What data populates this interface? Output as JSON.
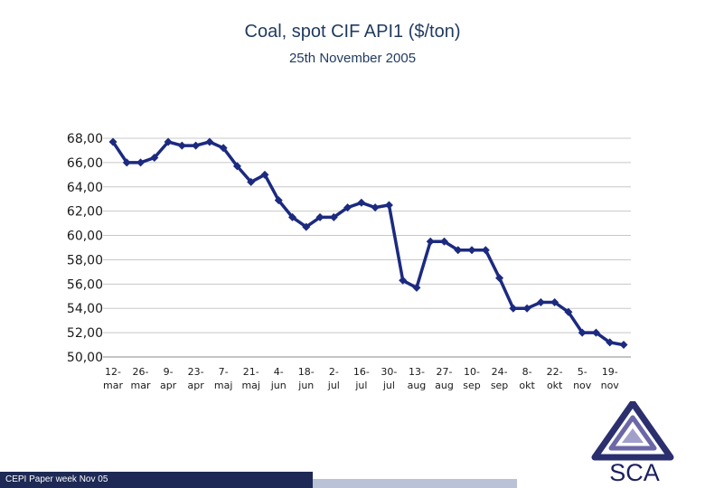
{
  "header": {
    "title": "Coal, spot CIF API1 ($/ton)",
    "subtitle": "25th November 2005"
  },
  "footer": {
    "label": "CEPI Paper week Nov 05"
  },
  "logo": {
    "text": "SCA"
  },
  "colors": {
    "line": "#1c2a80",
    "grid": "#c8c8c8",
    "footer_dark": "#1e2a55",
    "footer_light": "#b9c2d6"
  },
  "chart_data": {
    "type": "line",
    "title": "Coal, spot CIF API1 ($/ton)",
    "subtitle": "25th November 2005",
    "xlabel": "",
    "ylabel": "",
    "ylim": [
      50,
      68
    ],
    "y_ticks": [
      "68,00",
      "66,00",
      "64,00",
      "62,00",
      "60,00",
      "58,00",
      "56,00",
      "54,00",
      "52,00",
      "50,00"
    ],
    "grid": true,
    "x_tick_labels": [
      [
        "12-",
        "mar"
      ],
      [
        "26-",
        "mar"
      ],
      [
        "9-",
        "apr"
      ],
      [
        "23-",
        "apr"
      ],
      [
        "7-",
        "maj"
      ],
      [
        "21-",
        "maj"
      ],
      [
        "4-",
        "jun"
      ],
      [
        "18-",
        "jun"
      ],
      [
        "2-",
        "jul"
      ],
      [
        "16-",
        "jul"
      ],
      [
        "30-",
        "jul"
      ],
      [
        "13-",
        "aug"
      ],
      [
        "27-",
        "aug"
      ],
      [
        "10-",
        "sep"
      ],
      [
        "24-",
        "sep"
      ],
      [
        "8-",
        "okt"
      ],
      [
        "22-",
        "okt"
      ],
      [
        "5-",
        "nov"
      ],
      [
        "19-",
        "nov"
      ]
    ],
    "series": [
      {
        "values": [
          67.7,
          66.0,
          66.0,
          66.4,
          67.7,
          67.4,
          67.4,
          67.7,
          67.2,
          65.7,
          64.4,
          65.0,
          62.9,
          61.5,
          60.7,
          61.5,
          61.5,
          62.3,
          62.7,
          62.3,
          62.5,
          56.3,
          55.7,
          59.5,
          59.5,
          58.8,
          58.8,
          58.8,
          56.5,
          54.0,
          54.0,
          54.5,
          54.5,
          53.7,
          52.0,
          52.0,
          51.2,
          51.0
        ]
      }
    ]
  }
}
